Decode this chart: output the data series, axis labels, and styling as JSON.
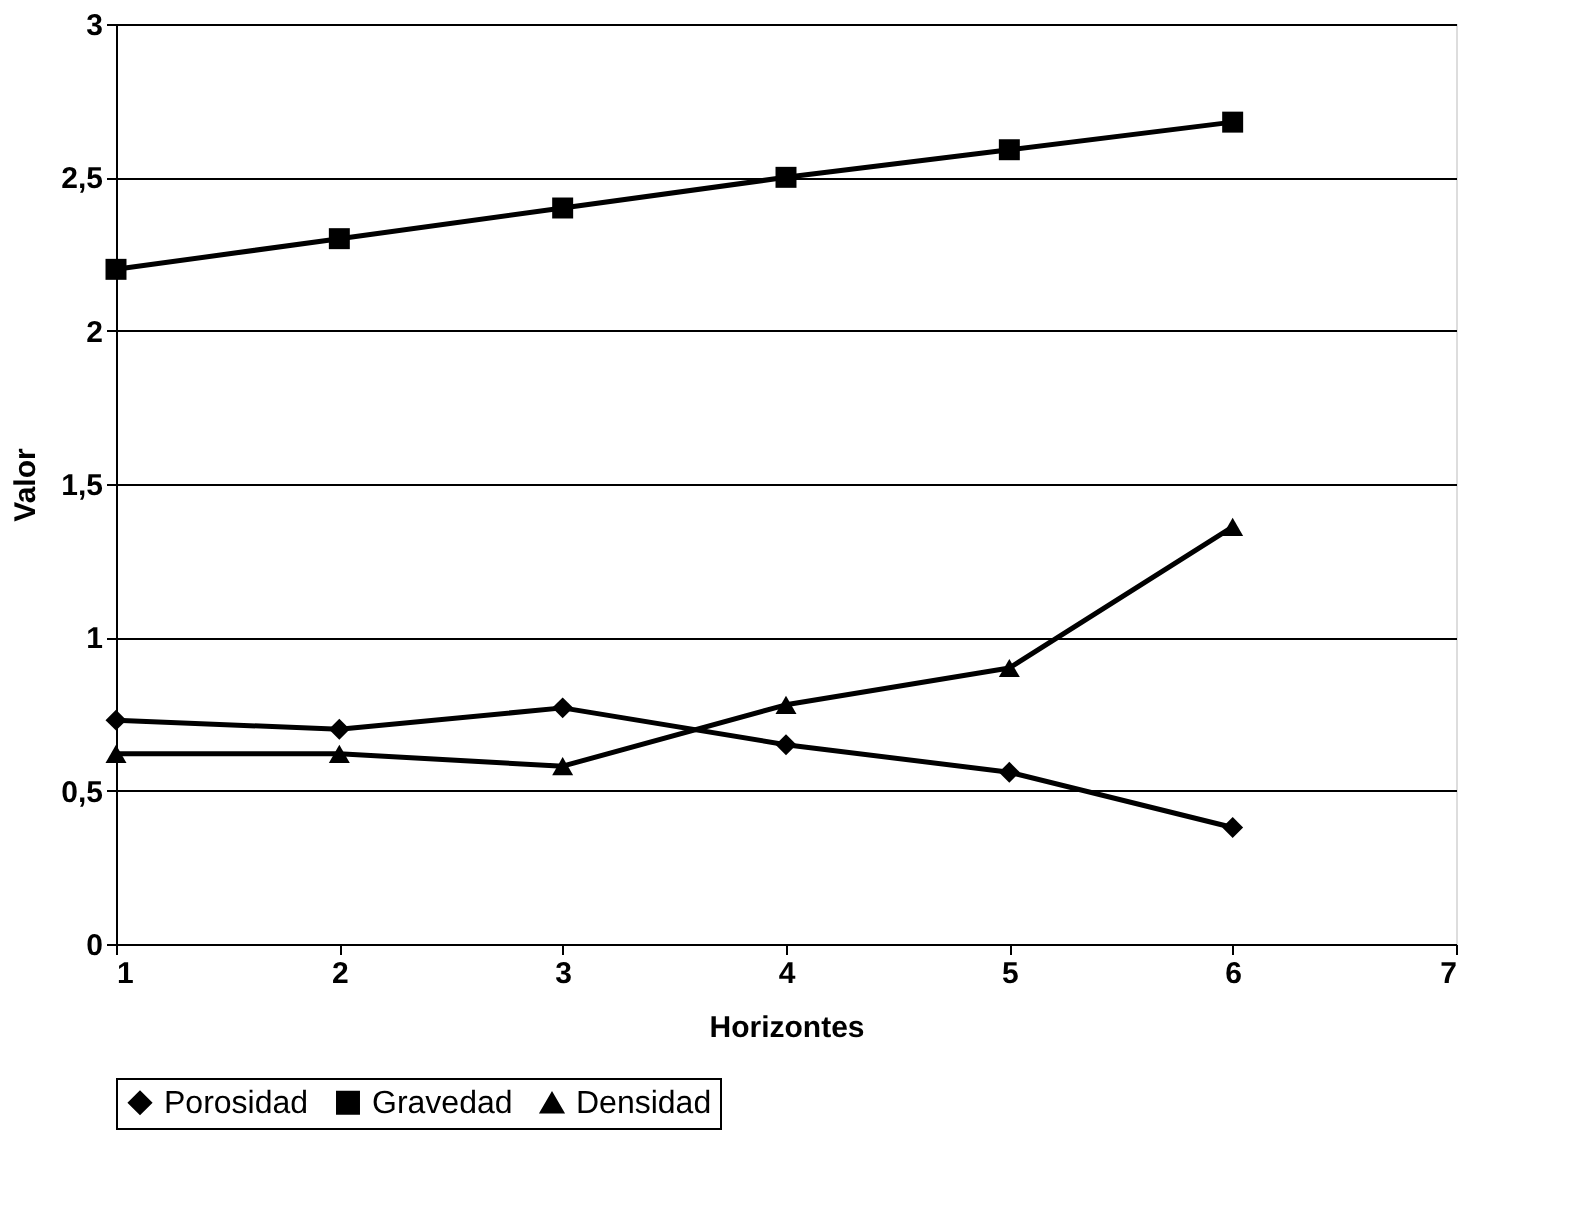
{
  "chart_data": {
    "type": "line",
    "xlabel": "Horizontes",
    "ylabel": "Valor",
    "x": [
      1,
      2,
      3,
      4,
      5,
      6
    ],
    "series": [
      {
        "name": "Porosidad",
        "color": "#000000",
        "marker": "diamond",
        "values": [
          0.73,
          0.7,
          0.77,
          0.65,
          0.56,
          0.38
        ]
      },
      {
        "name": "Gravedad",
        "color": "#000000",
        "marker": "square",
        "values": [
          2.2,
          2.3,
          2.4,
          2.5,
          2.59,
          2.68
        ]
      },
      {
        "name": "Densidad",
        "color": "#000000",
        "marker": "triangle",
        "values": [
          0.62,
          0.62,
          0.58,
          0.78,
          0.9,
          1.36
        ]
      }
    ],
    "xlim": [
      1,
      7
    ],
    "xticks": [
      1,
      2,
      3,
      4,
      5,
      6,
      7
    ],
    "ylim": [
      0,
      3
    ],
    "yticks": [
      {
        "value": 0,
        "label": "0"
      },
      {
        "value": 0.5,
        "label": "0,5"
      },
      {
        "value": 1,
        "label": "1"
      },
      {
        "value": 1.5,
        "label": "1,5"
      },
      {
        "value": 2,
        "label": "2"
      },
      {
        "value": 2.5,
        "label": "2,5"
      },
      {
        "value": 3,
        "label": "3"
      }
    ],
    "grid": "y",
    "legend": "bottom",
    "line_style": "solid"
  }
}
